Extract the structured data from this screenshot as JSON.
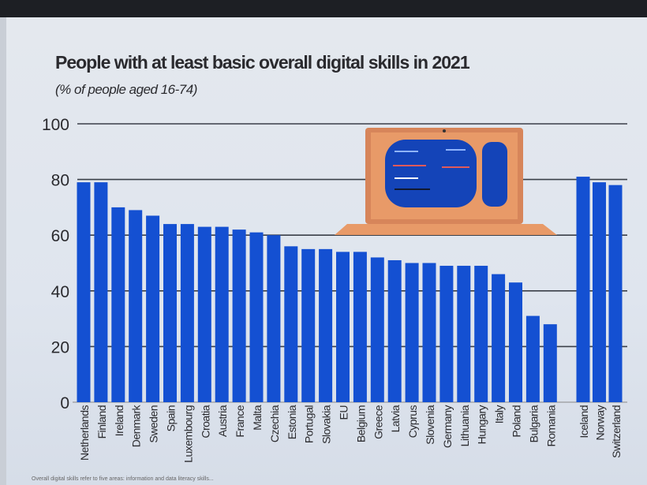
{
  "chart_data": {
    "type": "bar",
    "title": "People with at least basic overall digital skills  in 2021",
    "subtitle": "(% of people aged 16-74)",
    "categories": [
      "Netherlands",
      "Finland",
      "Ireland",
      "Denmark",
      "Sweden",
      "Spain",
      "Luxembourg",
      "Croatia",
      "Austria",
      "France",
      "Malta",
      "Czechia",
      "Estonia",
      "Portugal",
      "Slovakia",
      "EU",
      "Belgium",
      "Greece",
      "Latvia",
      "Cyprus",
      "Slovenia",
      "Germany",
      "Lithuania",
      "Hungary",
      "Italy",
      "Poland",
      "Bulgaria",
      "Romania",
      "Iceland",
      "Norway",
      "Switzerland"
    ],
    "values": [
      79,
      79,
      70,
      69,
      67,
      64,
      64,
      63,
      63,
      62,
      61,
      60,
      56,
      55,
      55,
      54,
      54,
      52,
      51,
      50,
      50,
      49,
      49,
      49,
      46,
      43,
      31,
      28,
      81,
      79,
      78
    ],
    "ylim": [
      0,
      100
    ],
    "yticks": [
      0,
      20,
      40,
      60,
      80,
      100
    ],
    "grid": true,
    "bar_color": "#1450d2",
    "xlabel": "",
    "ylabel": ""
  },
  "footer": "Overall digital skills refer to five areas: information and data literacy skills..."
}
